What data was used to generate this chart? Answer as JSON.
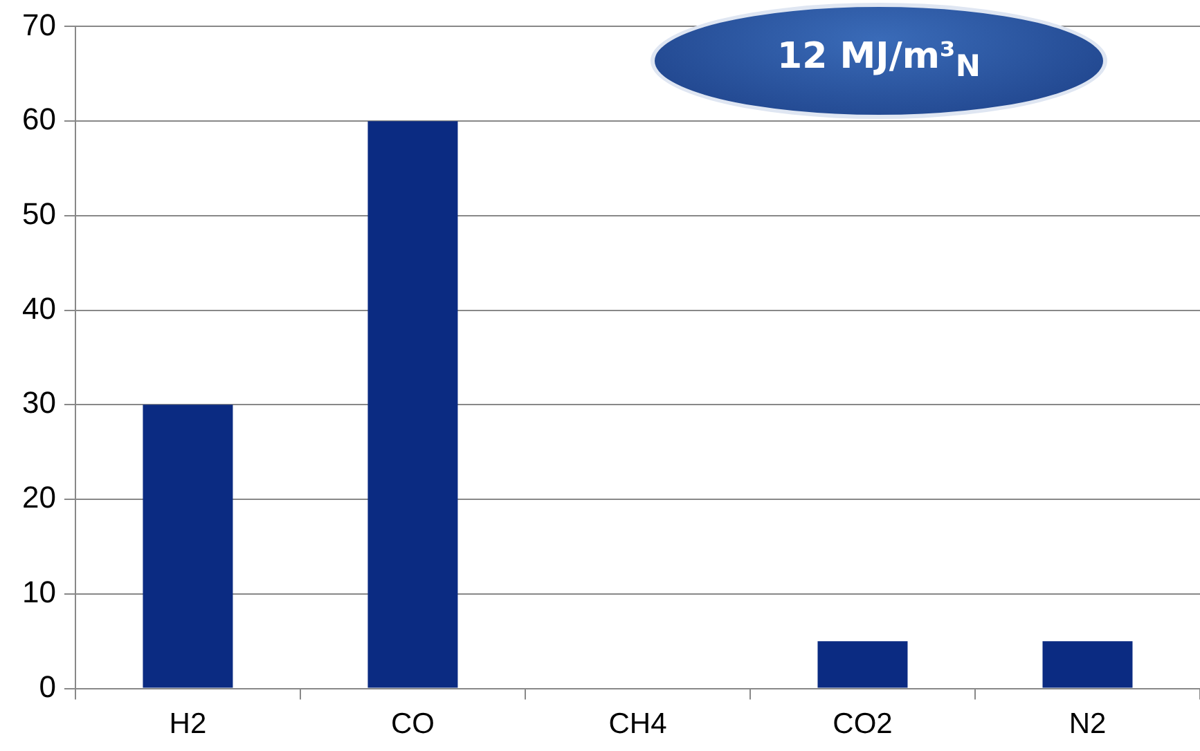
{
  "chart_data": {
    "type": "bar",
    "categories": [
      "H2",
      "CO",
      "CH4",
      "CO2",
      "N2"
    ],
    "values": [
      30,
      60,
      0,
      5,
      5
    ],
    "color": "#0b2b82",
    "ylim": [
      0,
      70
    ],
    "yticks": [
      0,
      10,
      20,
      30,
      40,
      50,
      60,
      70
    ],
    "grid": "y",
    "legend": false,
    "annotations": [
      "12 MJ/m³$_{N}$"
    ]
  }
}
